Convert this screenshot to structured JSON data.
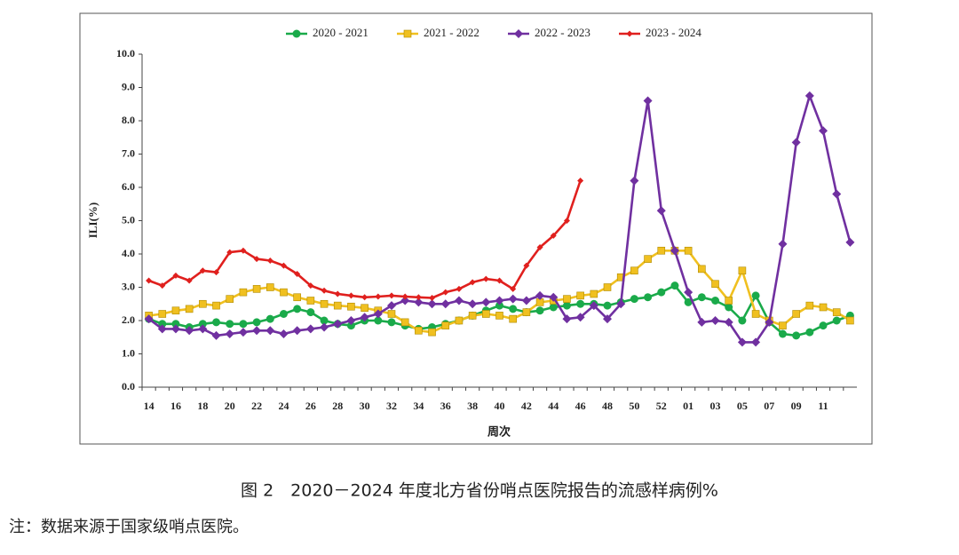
{
  "chart_data": {
    "type": "line",
    "caption": "图 2　2020－2024 年度北方省份哨点医院报告的流感样病例%",
    "note": "注：数据来源于国家级哨点医院。",
    "x_label": "周次",
    "y_label": "ILI(%)",
    "categories": [
      "14",
      null,
      "16",
      null,
      "18",
      null,
      "20",
      null,
      "22",
      null,
      "24",
      null,
      "26",
      null,
      "28",
      null,
      "30",
      null,
      "32",
      null,
      "34",
      null,
      "36",
      null,
      "38",
      null,
      "40",
      null,
      "42",
      null,
      "44",
      null,
      "46",
      null,
      "48",
      null,
      "50",
      null,
      "52",
      null,
      "01",
      null,
      "03",
      null,
      "05",
      null,
      "07",
      null,
      "09",
      null,
      "11",
      null,
      null
    ],
    "ylim": [
      0,
      10
    ],
    "yticks": [
      {
        "value": 0,
        "label": "0.0"
      },
      {
        "value": 1,
        "label": "1.0"
      },
      {
        "value": 2,
        "label": "2.0"
      },
      {
        "value": 3,
        "label": "3.0"
      },
      {
        "value": 4,
        "label": "4.0"
      },
      {
        "value": 5,
        "label": "5.0"
      },
      {
        "value": 6,
        "label": "6.0"
      },
      {
        "value": 7,
        "label": "7.0"
      },
      {
        "value": 8,
        "label": "8.0"
      },
      {
        "value": 9,
        "label": "9.0"
      },
      {
        "value": 10,
        "label": "10.0"
      }
    ],
    "series": [
      {
        "name": "2020 - 2021",
        "color": "#1aaa4a",
        "marker": "circle",
        "values": [
          2.05,
          1.9,
          1.9,
          1.8,
          1.9,
          1.95,
          1.9,
          1.9,
          1.95,
          2.05,
          2.2,
          2.35,
          2.25,
          2.0,
          1.9,
          1.85,
          2.0,
          2.0,
          1.95,
          1.85,
          1.75,
          1.8,
          1.9,
          2.0,
          2.15,
          2.3,
          2.45,
          2.35,
          2.25,
          2.3,
          2.4,
          2.45,
          2.5,
          2.5,
          2.45,
          2.55,
          2.65,
          2.7,
          2.85,
          3.05,
          2.55,
          2.7,
          2.6,
          2.4,
          2.0,
          2.75,
          1.95,
          1.6,
          1.55,
          1.65,
          1.85,
          2.0,
          2.15
        ]
      },
      {
        "name": "2021 - 2022",
        "color": "#f0c020",
        "marker": "square",
        "values": [
          2.15,
          2.2,
          2.3,
          2.35,
          2.5,
          2.45,
          2.65,
          2.85,
          2.95,
          3.0,
          2.85,
          2.7,
          2.6,
          2.5,
          2.45,
          2.42,
          2.38,
          2.3,
          2.2,
          1.95,
          1.7,
          1.65,
          1.85,
          2.0,
          2.15,
          2.2,
          2.15,
          2.05,
          2.25,
          2.55,
          2.6,
          2.65,
          2.75,
          2.8,
          3.0,
          3.3,
          3.5,
          3.85,
          4.1,
          4.1,
          4.1,
          3.55,
          3.1,
          2.6,
          3.5,
          2.2,
          2.0,
          1.85,
          2.2,
          2.45,
          2.4,
          2.25,
          2.0
        ]
      },
      {
        "name": "2022 - 2023",
        "color": "#7030a0",
        "marker": "diamond",
        "values": [
          2.05,
          1.75,
          1.75,
          1.7,
          1.75,
          1.55,
          1.6,
          1.65,
          1.7,
          1.7,
          1.6,
          1.7,
          1.75,
          1.8,
          1.9,
          2.0,
          2.1,
          2.2,
          2.45,
          2.6,
          2.55,
          2.5,
          2.5,
          2.6,
          2.5,
          2.55,
          2.6,
          2.65,
          2.6,
          2.75,
          2.7,
          2.05,
          2.1,
          2.45,
          2.05,
          2.5,
          6.2,
          8.6,
          5.3,
          4.1,
          2.85,
          1.95,
          2.0,
          1.95,
          1.35,
          1.35,
          1.95,
          4.3,
          7.35,
          8.75,
          7.7,
          5.8,
          4.35
        ]
      },
      {
        "name": "2023 - 2024",
        "color": "#e0201e",
        "marker": "smalldiamond",
        "values": [
          3.2,
          3.05,
          3.35,
          3.2,
          3.5,
          3.45,
          4.05,
          4.1,
          3.85,
          3.8,
          3.65,
          3.4,
          3.05,
          2.9,
          2.8,
          2.75,
          2.7,
          2.72,
          2.75,
          2.72,
          2.7,
          2.68,
          2.85,
          2.95,
          3.15,
          3.25,
          3.2,
          2.95,
          3.65,
          4.2,
          4.55,
          5.0,
          6.2,
          null,
          null,
          null,
          null,
          null,
          null,
          null,
          null,
          null,
          null,
          null,
          null,
          null,
          null,
          null,
          null,
          null,
          null,
          null,
          null
        ]
      }
    ]
  }
}
